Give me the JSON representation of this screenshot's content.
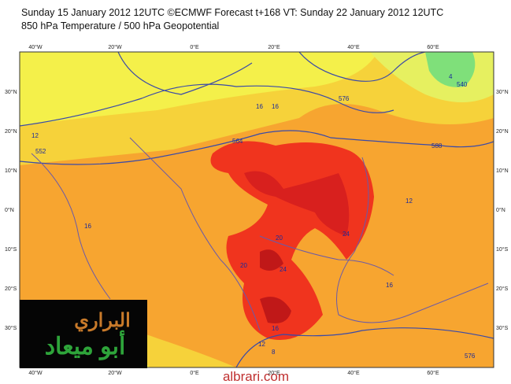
{
  "header": {
    "line1": "Sunday 15 January 2012 12UTC ©ECMWF Forecast t+168 VT: Sunday 22 January 2012 12UTC",
    "line2": "850 hPa Temperature / 500 hPa Geopotential"
  },
  "axes": {
    "lon": [
      "40°W",
      "20°W",
      "0°E",
      "20°E",
      "40°E",
      "60°E"
    ],
    "lat": [
      "30°N",
      "20°N",
      "10°N",
      "0°N",
      "10°S",
      "20°S",
      "30°S"
    ]
  },
  "contour_labels": [
    "12",
    "16",
    "552",
    "564",
    "576",
    "588",
    "16",
    "20",
    "24",
    "20",
    "24",
    "16",
    "16",
    "12",
    "16",
    "12",
    "8",
    "576",
    "4",
    "540"
  ],
  "logo": {
    "line1": "البراري",
    "line2": "أبو ميعاد"
  },
  "watermark": "albrari.com"
}
